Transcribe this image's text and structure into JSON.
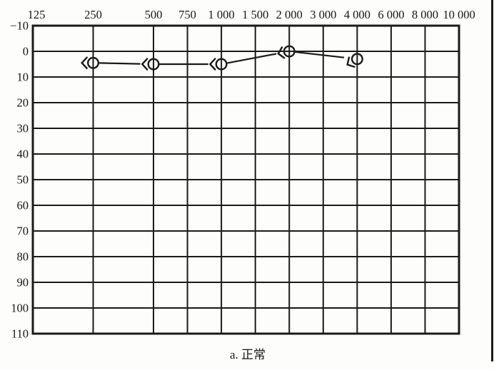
{
  "page": {
    "background": "#fdfdfc",
    "ink_color": "#1a1a1a",
    "right_border_color": "#1c1c1c"
  },
  "chart_data": {
    "type": "line",
    "title": "",
    "caption": "a. 正常",
    "x_axis": {
      "position": "top",
      "tick_labels": [
        "125",
        "250",
        "500",
        "750",
        "1 000",
        "1 500",
        "2 000",
        "3 000",
        "4 000",
        "6 000",
        "8 000",
        "10 000"
      ],
      "tick_values": [
        125,
        250,
        500,
        750,
        1000,
        1500,
        2000,
        3000,
        4000,
        6000,
        8000,
        10000
      ]
    },
    "y_axis": {
      "position": "left",
      "tick_labels": [
        "−10",
        "0",
        "10",
        "20",
        "30",
        "40",
        "50",
        "60",
        "70",
        "80",
        "90",
        "100",
        "110"
      ],
      "min": -10,
      "max": 110,
      "step": 10,
      "direction": "down"
    },
    "grid": "on",
    "legend": "none",
    "series": [
      {
        "marker": "circle-left-chevron-icon",
        "frequencies_hz": [
          250,
          500,
          1000,
          2000,
          4000
        ],
        "thresholds_db": [
          4.5,
          5,
          5,
          0,
          3
        ],
        "chevron_angles_deg": [
          0,
          0,
          0,
          -12,
          -30
        ]
      }
    ],
    "line_color": "#1a1a1a",
    "grid_color": "#1a1a1a"
  }
}
